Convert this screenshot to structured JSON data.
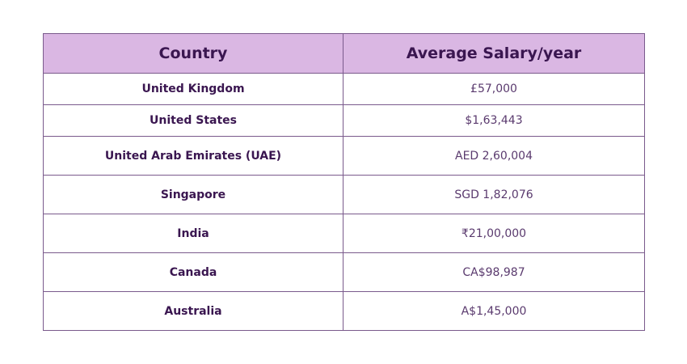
{
  "table": {
    "headers": [
      "Country",
      "Average Salary/year"
    ],
    "rows": [
      {
        "country": "United Kingdom",
        "salary": "£57,000"
      },
      {
        "country": "United States",
        "salary": "$1,63,443"
      },
      {
        "country": "United Arab Emirates (UAE)",
        "salary": "AED 2,60,004"
      },
      {
        "country": "Singapore",
        "salary": "SGD 1,82,076"
      },
      {
        "country": "India",
        "salary": "₹21,00,000"
      },
      {
        "country": "Canada",
        "salary": "CA$98,987"
      },
      {
        "country": "Australia",
        "salary": "A$1,45,000"
      }
    ]
  },
  "colors": {
    "header_bg": "#dab7e3",
    "border": "#7a5a8c",
    "text": "#3a1650"
  }
}
